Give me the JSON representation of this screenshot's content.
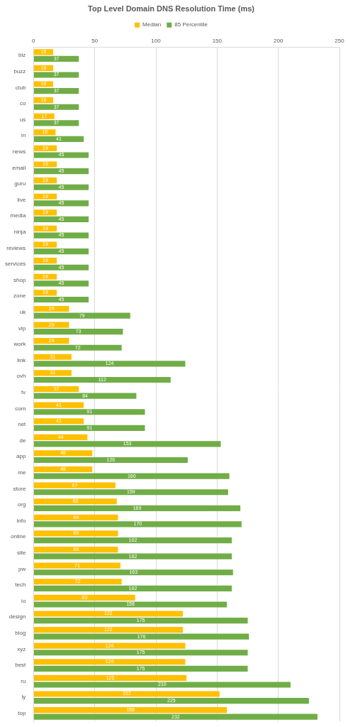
{
  "chart_data": {
    "type": "bar",
    "orientation": "horizontal",
    "title": "Top Level Domain DNS Resolution Time (ms)",
    "categories": [
      "biz",
      "buzz",
      "club",
      "co",
      "us",
      "in",
      "news",
      "email",
      "guru",
      "live",
      "media",
      "ninja",
      "reviews",
      "services",
      "shop",
      "zone",
      "uk",
      "vip",
      "work",
      "link",
      "ovh",
      "tv",
      "com",
      "net",
      "de",
      "app",
      "me",
      "store",
      "org",
      "info",
      "online",
      "site",
      "pw",
      "tech",
      "io",
      "design",
      "blog",
      "xyz",
      "best",
      "ru",
      "ly",
      "top"
    ],
    "series": [
      {
        "name": "Median",
        "color": "#ffc000",
        "values": [
          16,
          16,
          16,
          16,
          17,
          18,
          19,
          19,
          19,
          19,
          19,
          19,
          19,
          19,
          19,
          19,
          29,
          29,
          29,
          31,
          31,
          37,
          41,
          41,
          44,
          48,
          48,
          67,
          68,
          69,
          69,
          69,
          71,
          72,
          83,
          122,
          122,
          124,
          124,
          125,
          152,
          158
        ]
      },
      {
        "name": "85 Percentile",
        "color": "#70ad47",
        "values": [
          37,
          37,
          37,
          37,
          37,
          41,
          45,
          45,
          45,
          45,
          45,
          45,
          45,
          45,
          45,
          45,
          79,
          73,
          72,
          124,
          112,
          84,
          91,
          91,
          153,
          126,
          160,
          159,
          169,
          170,
          162,
          162,
          163,
          162,
          158,
          175,
          176,
          175,
          175,
          210,
          225,
          232
        ]
      }
    ],
    "xlim": [
      0,
      250
    ],
    "xticks": [
      0,
      50,
      100,
      150,
      200,
      250
    ],
    "grid": true,
    "legend": "top",
    "data_labels": true
  }
}
